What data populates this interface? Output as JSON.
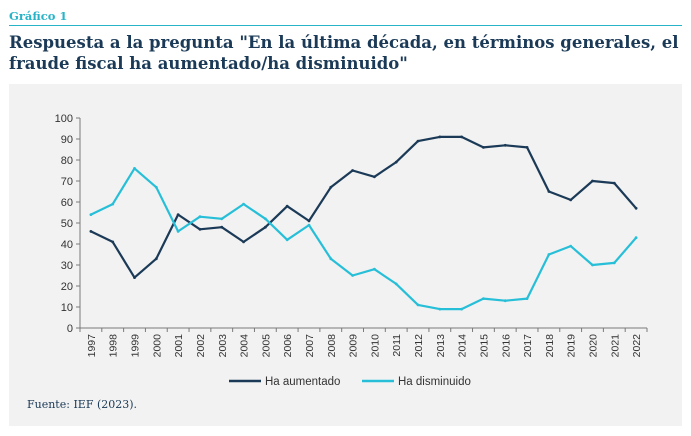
{
  "figure_label": "Gráfico 1",
  "title": "Respuesta a la pregunta \"En la última década, en términos generales, el fraude fiscal ha aumentado/ha disminuido\"",
  "source": "Fuente: IEF (2023).",
  "chart_data": {
    "type": "line",
    "title": "",
    "xlabel": "",
    "ylabel": "",
    "ylim": [
      0,
      100
    ],
    "yticks": [
      0,
      10,
      20,
      30,
      40,
      50,
      60,
      70,
      80,
      90,
      100
    ],
    "grid": false,
    "legend_position": "bottom",
    "categories": [
      "1997",
      "1998",
      "1999",
      "2000",
      "2001",
      "2002",
      "2003",
      "2004",
      "2005",
      "2006",
      "2007",
      "2008",
      "2009",
      "2010",
      "2011",
      "2012",
      "2013",
      "2014",
      "2015",
      "2016",
      "2017",
      "2018",
      "2019",
      "2020",
      "2021",
      "2022"
    ],
    "series": [
      {
        "name": "Ha aumentado",
        "color": "#1b3a57",
        "values": [
          46,
          41,
          24,
          33,
          54,
          47,
          48,
          41,
          48,
          58,
          51,
          67,
          75,
          72,
          79,
          89,
          91,
          91,
          86,
          87,
          86,
          65,
          61,
          70,
          69,
          57
        ]
      },
      {
        "name": "Ha disminuido",
        "color": "#27bfd8",
        "values": [
          54,
          59,
          76,
          67,
          46,
          53,
          52,
          59,
          52,
          42,
          49,
          33,
          25,
          28,
          21,
          11,
          9,
          9,
          14,
          13,
          14,
          35,
          39,
          30,
          31,
          43
        ]
      }
    ]
  }
}
